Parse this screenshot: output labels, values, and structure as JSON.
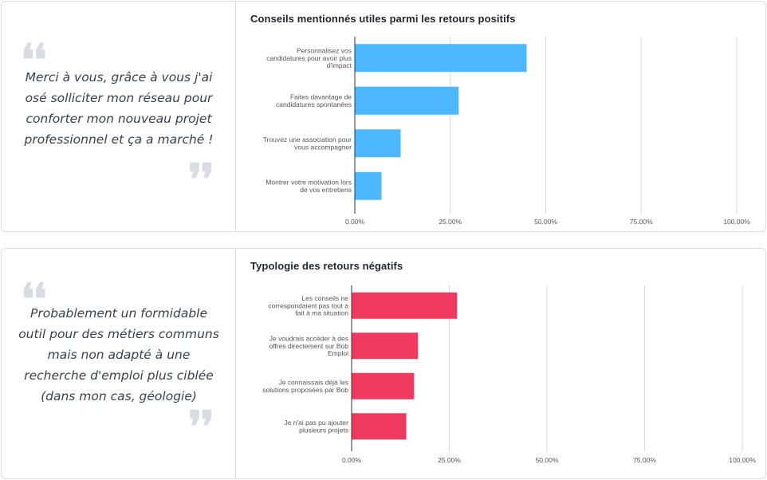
{
  "cards": [
    {
      "quote": "Merci à vous, grâce à vous j'ai osé solliciter mon réseau pour conforter mon nouveau projet professionnel et ça a marché !",
      "quote_open_mark": "❛❛",
      "quote_close_mark": "❜❜"
    },
    {
      "quote": "Probablement un formidable outil pour des métiers communs mais non adapté à une recherche d'emploi plus ciblée (dans mon cas, géologie)",
      "quote_open_mark": "❛❛",
      "quote_close_mark": "❜❜"
    }
  ],
  "chart_data": [
    {
      "type": "bar",
      "orientation": "horizontal",
      "title": "Conseils mentionnés utiles parmi les retours positifs",
      "color": "#4db8ff",
      "categories": [
        [
          "Personnalisez vos",
          "candidatures pour avoir plus",
          "d'impact"
        ],
        [
          "Faites davantage de",
          "candidatures spontanées"
        ],
        [
          "Trouvez une association pour",
          "vous accompagner"
        ],
        [
          "Montrer votre motivation lors",
          "de vos entretiens"
        ]
      ],
      "values": [
        0.45,
        0.272,
        0.12,
        0.07
      ],
      "xlim": [
        0,
        1
      ],
      "ticks": [
        0,
        0.25,
        0.5,
        0.75,
        1
      ],
      "tick_labels": [
        "0.00%",
        "25.00%",
        "50.00%",
        "75.00%",
        "100.00%"
      ],
      "grid": true
    },
    {
      "type": "bar",
      "orientation": "horizontal",
      "title": "Typologie des retours négatifs",
      "color": "#f0395f",
      "categories": [
        [
          "Les conseils ne",
          "correspondaient pas tout à",
          "fait à ma situation"
        ],
        [
          "Je voudrais accèder à des",
          "offres directement sur Bob",
          "Emploi"
        ],
        [
          "Je connaissais déjà les",
          "solutions proposées par Bob"
        ],
        [
          "Je n'ai pas pu ajouter",
          "plusieurs projets"
        ]
      ],
      "values": [
        0.27,
        0.17,
        0.16,
        0.14
      ],
      "xlim": [
        0,
        1
      ],
      "ticks": [
        0,
        0.25,
        0.5,
        0.75,
        1
      ],
      "tick_labels": [
        "0.00%",
        "25.00%",
        "50.00%",
        "75.00%",
        "100.00%"
      ],
      "grid": true
    }
  ]
}
